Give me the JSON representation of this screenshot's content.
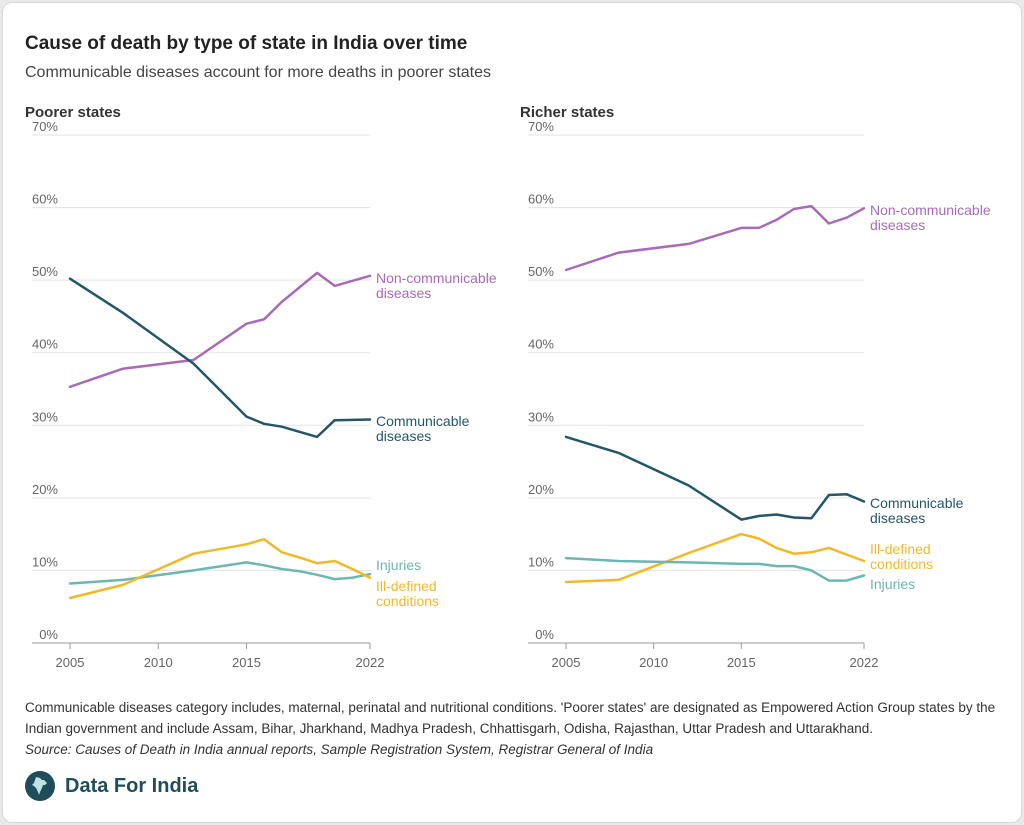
{
  "header": {
    "title": "Cause of death by type of state in India over time",
    "subtitle": "Communicable diseases account for more deaths in poorer states"
  },
  "colors": {
    "ncd": "#a86bb8",
    "cd": "#24566a",
    "injuries": "#6cb7b2",
    "illdefined": "#f1b829"
  },
  "chart_data": [
    {
      "type": "line",
      "title": "Poorer states",
      "xlabel": "",
      "ylabel": "",
      "xlim": [
        2005,
        2022
      ],
      "ylim": [
        0,
        70
      ],
      "x_ticks": [
        "2005",
        "2010",
        "2015",
        "2022"
      ],
      "y_ticks": [
        "0%",
        "10%",
        "20%",
        "30%",
        "40%",
        "50%",
        "60%",
        "70%"
      ],
      "series": [
        {
          "key": "ncd",
          "name": "Non-communicable diseases",
          "label_lines": [
            "Non-communicable",
            "diseases"
          ],
          "x": [
            2005,
            2008,
            2012,
            2015,
            2016,
            2017,
            2019,
            2020,
            2022
          ],
          "values": [
            35.3,
            37.8,
            39.0,
            44.0,
            44.6,
            47.0,
            51.0,
            49.2,
            50.6
          ]
        },
        {
          "key": "cd",
          "name": "Communicable diseases",
          "label_lines": [
            "Communicable",
            "diseases"
          ],
          "x": [
            2005,
            2008,
            2012,
            2015,
            2016,
            2017,
            2019,
            2020,
            2022
          ],
          "values": [
            50.2,
            45.5,
            38.5,
            31.2,
            30.2,
            29.8,
            28.4,
            30.7,
            30.8
          ]
        },
        {
          "key": "injuries",
          "name": "Injuries",
          "label_lines": [
            "Injuries"
          ],
          "x": [
            2005,
            2008,
            2012,
            2015,
            2016,
            2017,
            2018,
            2019,
            2020,
            2021,
            2022
          ],
          "values": [
            8.2,
            8.7,
            10.0,
            11.1,
            10.7,
            10.2,
            9.9,
            9.4,
            8.8,
            9.0,
            9.5
          ]
        },
        {
          "key": "illdefined",
          "name": "Ill-defined conditions",
          "label_lines": [
            "Ill-defined",
            "conditions"
          ],
          "x": [
            2005,
            2008,
            2012,
            2015,
            2016,
            2017,
            2018,
            2019,
            2020,
            2021,
            2022
          ],
          "values": [
            6.2,
            8.0,
            12.3,
            13.6,
            14.3,
            12.5,
            11.8,
            11.0,
            11.3,
            10.2,
            9.0
          ]
        }
      ]
    },
    {
      "type": "line",
      "title": "Richer states",
      "xlabel": "",
      "ylabel": "",
      "xlim": [
        2005,
        2022
      ],
      "ylim": [
        0,
        70
      ],
      "x_ticks": [
        "2005",
        "2010",
        "2015",
        "2022"
      ],
      "y_ticks": [
        "0%",
        "10%",
        "20%",
        "30%",
        "40%",
        "50%",
        "60%",
        "70%"
      ],
      "series": [
        {
          "key": "ncd",
          "name": "Non-communicable diseases",
          "label_lines": [
            "Non-communicable",
            "diseases"
          ],
          "x": [
            2005,
            2008,
            2012,
            2015,
            2016,
            2017,
            2018,
            2019,
            2020,
            2021,
            2022
          ],
          "values": [
            51.4,
            53.8,
            55.0,
            57.2,
            57.2,
            58.3,
            59.8,
            60.2,
            57.8,
            58.6,
            59.9
          ]
        },
        {
          "key": "cd",
          "name": "Communicable diseases",
          "label_lines": [
            "Communicable",
            "diseases"
          ],
          "x": [
            2005,
            2008,
            2012,
            2015,
            2016,
            2017,
            2018,
            2019,
            2020,
            2021,
            2022
          ],
          "values": [
            28.4,
            26.2,
            21.7,
            17.0,
            17.5,
            17.7,
            17.3,
            17.2,
            20.4,
            20.5,
            19.5
          ]
        },
        {
          "key": "illdefined",
          "name": "Ill-defined conditions",
          "label_lines": [
            "Ill-defined",
            "conditions"
          ],
          "x": [
            2005,
            2008,
            2012,
            2015,
            2016,
            2017,
            2018,
            2019,
            2020,
            2021,
            2022
          ],
          "values": [
            8.4,
            8.7,
            12.4,
            15.0,
            14.4,
            13.1,
            12.3,
            12.5,
            13.1,
            12.2,
            11.3
          ]
        },
        {
          "key": "injuries",
          "name": "Injuries",
          "label_lines": [
            "Injuries"
          ],
          "x": [
            2005,
            2008,
            2012,
            2015,
            2016,
            2017,
            2018,
            2019,
            2020,
            2021,
            2022
          ],
          "values": [
            11.7,
            11.3,
            11.1,
            10.9,
            10.9,
            10.6,
            10.6,
            10.0,
            8.6,
            8.6,
            9.3
          ]
        }
      ]
    }
  ],
  "footer": {
    "note": "Communicable diseases category includes, maternal, perinatal and nutritional conditions. 'Poorer states' are designated as Empowered Action Group states by the Indian government and include Assam, Bihar, Jharkhand, Madhya Pradesh, Chhattisgarh, Odisha, Rajasthan, Uttar Pradesh and Uttarakhand.",
    "source": "Source: Causes of Death in India annual reports, Sample Registration System, Registrar General of India",
    "brand": "Data For India",
    "logo_icon": "india-map-icon"
  }
}
